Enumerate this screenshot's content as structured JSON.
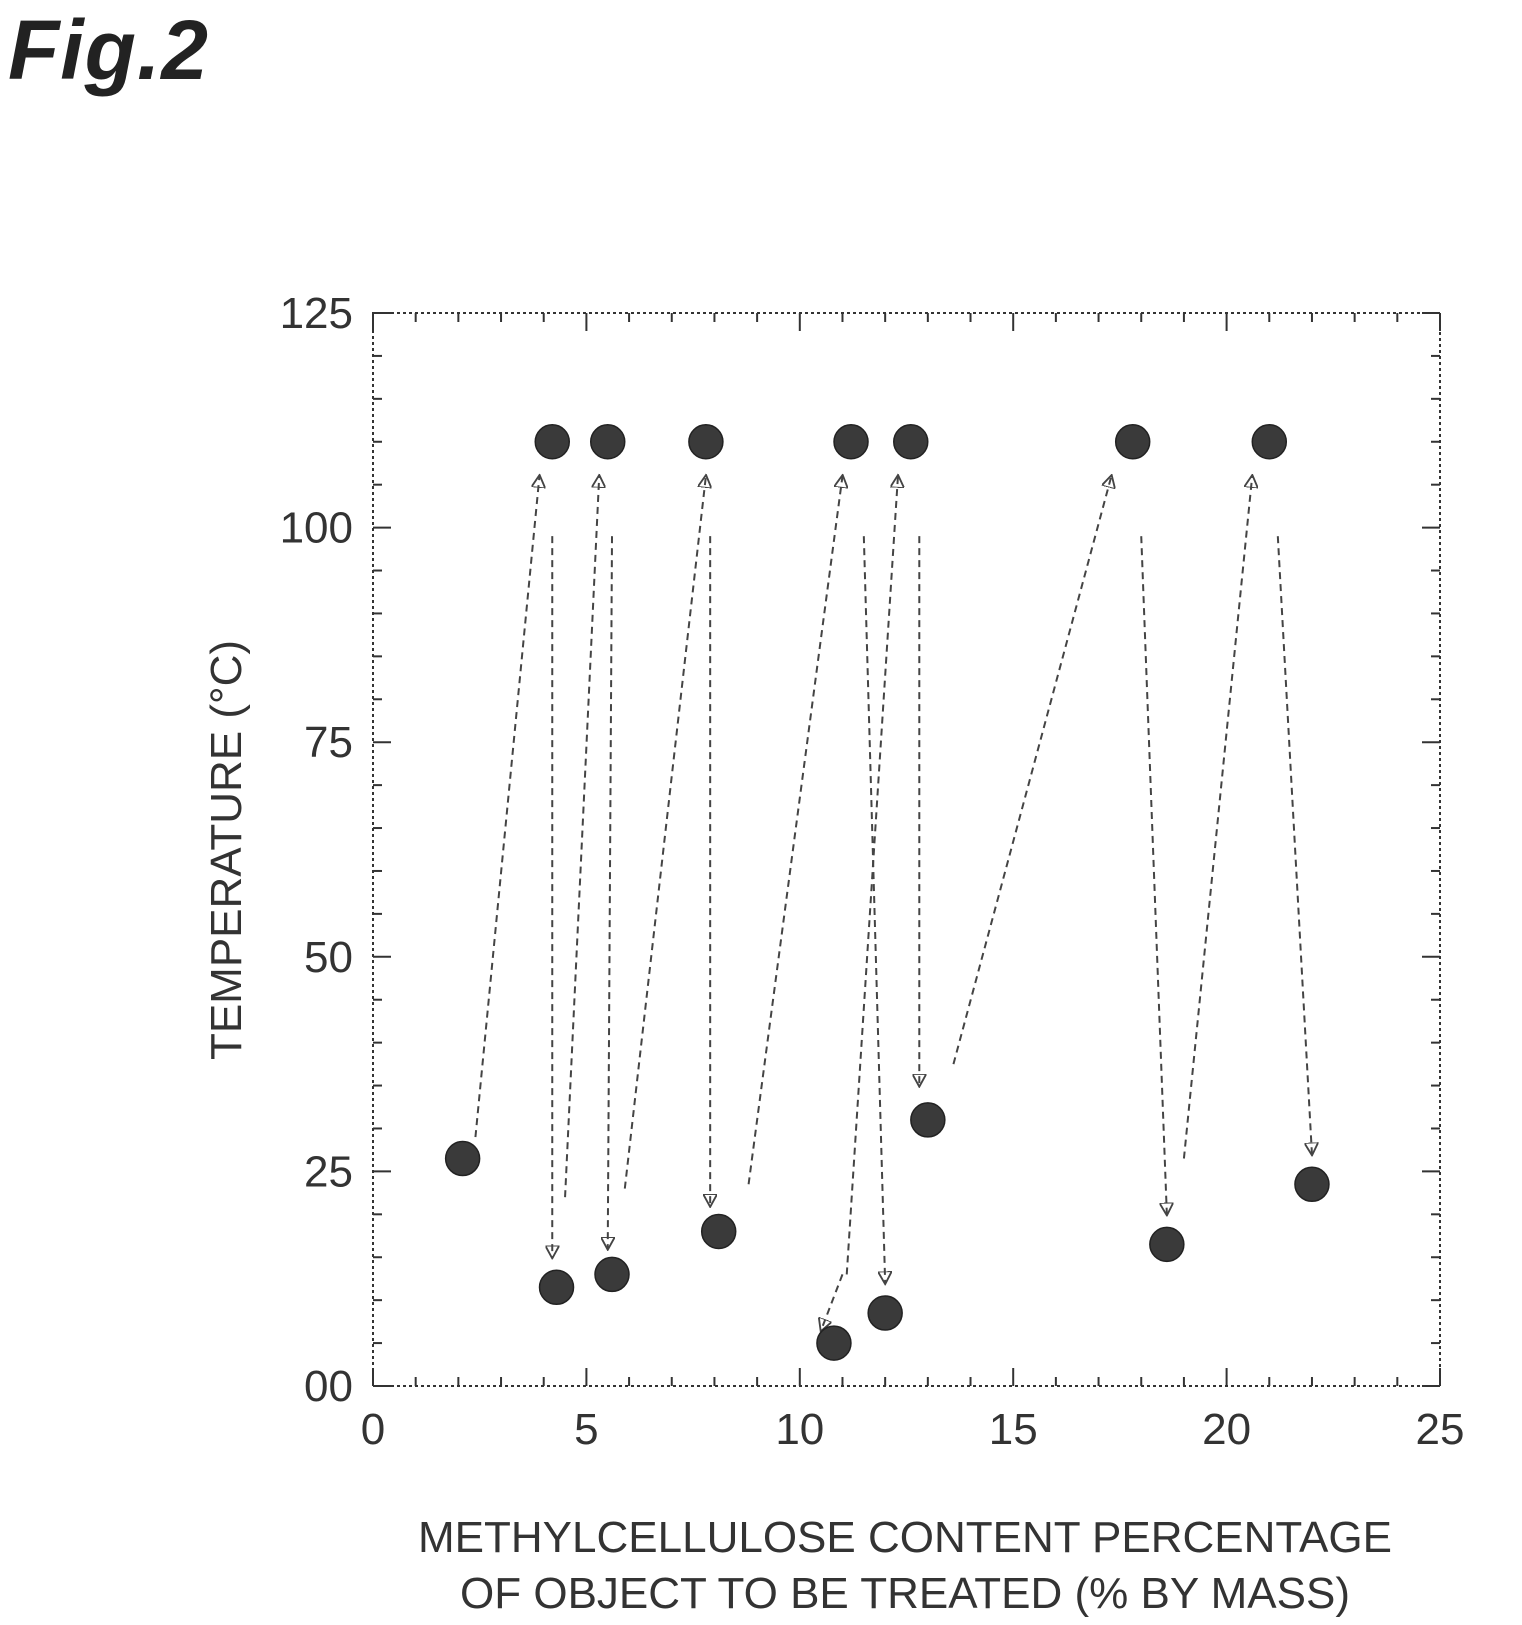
{
  "figure": {
    "label": "Fig.2"
  },
  "colors": {
    "axis": "#333333",
    "point": "#3a3a3a",
    "arrow": "#444444"
  },
  "chart_data": {
    "type": "scatter",
    "title": "",
    "xlabel_lines": [
      "METHYLCELLULOSE CONTENT PERCENTAGE",
      "OF OBJECT TO BE TREATED (% BY MASS)"
    ],
    "ylabel": "TEMPERATURE (°C)",
    "xlim": [
      0,
      25
    ],
    "ylim": [
      0,
      125
    ],
    "x_ticks": [
      0,
      5,
      10,
      15,
      20,
      25
    ],
    "x_tick_labels": [
      "0",
      "5",
      "10",
      "15",
      "20",
      "25"
    ],
    "y_ticks": [
      0,
      25,
      50,
      75,
      100,
      125
    ],
    "y_tick_labels": [
      "00",
      "25",
      "50",
      "75",
      "100",
      "125"
    ],
    "minor_tick_step_x": 1,
    "minor_tick_step_y": 5,
    "grid": false,
    "frame_style": "dotted",
    "points": [
      {
        "x": 2.1,
        "y": 26.5
      },
      {
        "x": 4.2,
        "y": 110
      },
      {
        "x": 4.3,
        "y": 11.5
      },
      {
        "x": 5.5,
        "y": 110
      },
      {
        "x": 5.6,
        "y": 13
      },
      {
        "x": 7.8,
        "y": 110
      },
      {
        "x": 8.1,
        "y": 18
      },
      {
        "x": 10.8,
        "y": 5
      },
      {
        "x": 11.2,
        "y": 110
      },
      {
        "x": 12.0,
        "y": 8.5
      },
      {
        "x": 12.6,
        "y": 110
      },
      {
        "x": 13.0,
        "y": 31
      },
      {
        "x": 17.8,
        "y": 110
      },
      {
        "x": 18.6,
        "y": 16.5
      },
      {
        "x": 21.0,
        "y": 110
      },
      {
        "x": 22.0,
        "y": 23.5
      }
    ],
    "arrows": [
      {
        "from": [
          2.4,
          29
        ],
        "to": [
          3.9,
          106
        ]
      },
      {
        "from": [
          4.2,
          99
        ],
        "to": [
          4.2,
          15
        ]
      },
      {
        "from": [
          4.5,
          22
        ],
        "to": [
          5.3,
          106
        ]
      },
      {
        "from": [
          5.6,
          99
        ],
        "to": [
          5.5,
          16
        ]
      },
      {
        "from": [
          5.9,
          23
        ],
        "to": [
          7.8,
          106
        ]
      },
      {
        "from": [
          7.9,
          99
        ],
        "to": [
          7.9,
          21
        ]
      },
      {
        "from": [
          8.8,
          23.5
        ],
        "to": [
          11.0,
          106
        ]
      },
      {
        "from": [
          11.5,
          99
        ],
        "to": [
          12.0,
          12
        ]
      },
      {
        "from": [
          11.1,
          13
        ],
        "to": [
          12.3,
          106
        ]
      },
      {
        "from": [
          12.8,
          99
        ],
        "to": [
          12.8,
          35
        ]
      },
      {
        "from": [
          11.0,
          13
        ],
        "to": [
          10.5,
          6.5
        ]
      },
      {
        "from": [
          13.6,
          37.5
        ],
        "to": [
          17.3,
          106
        ]
      },
      {
        "from": [
          18.0,
          99
        ],
        "to": [
          18.6,
          20
        ]
      },
      {
        "from": [
          19.0,
          26.5
        ],
        "to": [
          20.6,
          106
        ]
      },
      {
        "from": [
          21.2,
          99
        ],
        "to": [
          22.0,
          27
        ]
      }
    ]
  }
}
